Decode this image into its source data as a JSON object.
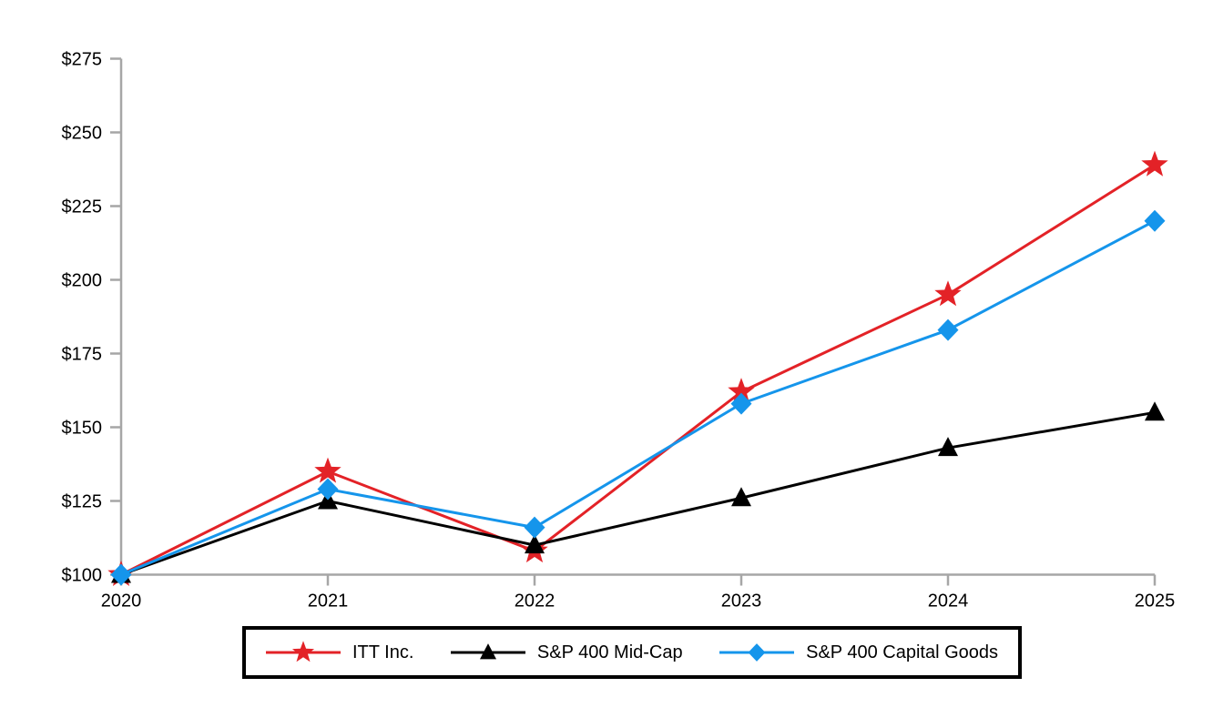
{
  "chart_data": {
    "type": "line",
    "categories": [
      "2020",
      "2021",
      "2022",
      "2023",
      "2024",
      "2025"
    ],
    "series": [
      {
        "name": "ITT Inc.",
        "color": "#e32227",
        "marker": "star",
        "values": [
          100,
          135,
          108,
          162,
          195,
          239
        ]
      },
      {
        "name": "S&P 400 Mid-Cap",
        "color": "#000000",
        "marker": "triangle",
        "values": [
          100,
          125,
          110,
          126,
          143,
          155
        ]
      },
      {
        "name": "S&P 400 Capital Goods",
        "color": "#1595eb",
        "marker": "diamond",
        "values": [
          100,
          129,
          116,
          158,
          183,
          220
        ]
      }
    ],
    "ylim": [
      100,
      275
    ],
    "y_tick_step": 25,
    "y_tick_prefix": "$",
    "y_tick_labels": [
      "$100",
      "$125",
      "$150",
      "$175",
      "$200",
      "$225",
      "$250",
      "$275"
    ],
    "axis_color": "#a6a6a6",
    "grid": false,
    "legend_position": "bottom-boxed"
  }
}
